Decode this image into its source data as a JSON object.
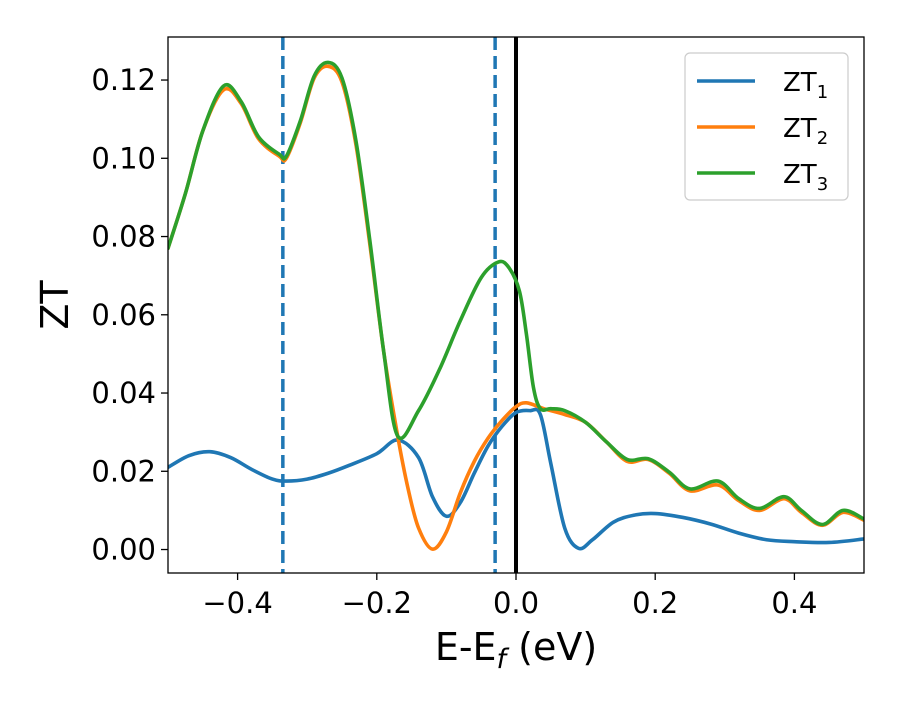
{
  "chart_data": {
    "type": "line",
    "xlabel": "E-E",
    "xlabel_sub": "f",
    "xlabel_unit": " (eV)",
    "ylabel": "ZT",
    "xlim": [
      -0.5,
      0.5
    ],
    "ylim": [
      -0.006,
      0.131
    ],
    "grid": false,
    "legend_position": "top-right",
    "x_ticks": [
      {
        "value": -0.4,
        "label": "−0.4"
      },
      {
        "value": -0.2,
        "label": "−0.2"
      },
      {
        "value": 0.0,
        "label": "0.0"
      },
      {
        "value": 0.2,
        "label": "0.2"
      },
      {
        "value": 0.4,
        "label": "0.4"
      }
    ],
    "y_ticks": [
      {
        "value": 0.0,
        "label": "0.00"
      },
      {
        "value": 0.02,
        "label": "0.02"
      },
      {
        "value": 0.04,
        "label": "0.04"
      },
      {
        "value": 0.06,
        "label": "0.06"
      },
      {
        "value": 0.08,
        "label": "0.08"
      },
      {
        "value": 0.1,
        "label": "0.10"
      },
      {
        "value": 0.12,
        "label": "0.12"
      }
    ],
    "vertical_lines": [
      {
        "x": -0.335,
        "style": "dashed",
        "color": "#1f77b4"
      },
      {
        "x": -0.03,
        "style": "dashed",
        "color": "#1f77b4"
      },
      {
        "x": 0.0,
        "style": "solid",
        "color": "#000000"
      }
    ],
    "series": [
      {
        "name": "ZT",
        "sub": "1",
        "color": "#1f77b4",
        "points": [
          [
            -0.5,
            0.021
          ],
          [
            -0.47,
            0.024
          ],
          [
            -0.44,
            0.025
          ],
          [
            -0.41,
            0.0235
          ],
          [
            -0.38,
            0.0205
          ],
          [
            -0.35,
            0.018
          ],
          [
            -0.33,
            0.0175
          ],
          [
            -0.3,
            0.018
          ],
          [
            -0.27,
            0.0195
          ],
          [
            -0.24,
            0.0215
          ],
          [
            -0.2,
            0.0245
          ],
          [
            -0.17,
            0.028
          ],
          [
            -0.14,
            0.0235
          ],
          [
            -0.12,
            0.0135
          ],
          [
            -0.1,
            0.0085
          ],
          [
            -0.08,
            0.012
          ],
          [
            -0.06,
            0.0195
          ],
          [
            -0.04,
            0.0265
          ],
          [
            -0.02,
            0.0315
          ],
          [
            0.0,
            0.035
          ],
          [
            0.02,
            0.0355
          ],
          [
            0.035,
            0.0345
          ],
          [
            0.05,
            0.022
          ],
          [
            0.07,
            0.0055
          ],
          [
            0.09,
            0.0003
          ],
          [
            0.11,
            0.0025
          ],
          [
            0.14,
            0.007
          ],
          [
            0.17,
            0.0088
          ],
          [
            0.2,
            0.0092
          ],
          [
            0.24,
            0.0082
          ],
          [
            0.28,
            0.0065
          ],
          [
            0.32,
            0.0042
          ],
          [
            0.36,
            0.0025
          ],
          [
            0.4,
            0.002
          ],
          [
            0.45,
            0.0018
          ],
          [
            0.5,
            0.0027
          ]
        ]
      },
      {
        "name": "ZT",
        "sub": "2",
        "color": "#ff7f0e",
        "points": [
          [
            -0.5,
            0.077
          ],
          [
            -0.475,
            0.091
          ],
          [
            -0.45,
            0.107
          ],
          [
            -0.42,
            0.1175
          ],
          [
            -0.395,
            0.114
          ],
          [
            -0.37,
            0.105
          ],
          [
            -0.34,
            0.1005
          ],
          [
            -0.33,
            0.1
          ],
          [
            -0.31,
            0.109
          ],
          [
            -0.29,
            0.1205
          ],
          [
            -0.27,
            0.1235
          ],
          [
            -0.25,
            0.1195
          ],
          [
            -0.23,
            0.1035
          ],
          [
            -0.21,
            0.078
          ],
          [
            -0.19,
            0.0505
          ],
          [
            -0.17,
            0.029
          ],
          [
            -0.155,
            0.0155
          ],
          [
            -0.14,
            0.0055
          ],
          [
            -0.12,
            0.0001
          ],
          [
            -0.1,
            0.0045
          ],
          [
            -0.08,
            0.0145
          ],
          [
            -0.06,
            0.0225
          ],
          [
            -0.04,
            0.0285
          ],
          [
            -0.02,
            0.033
          ],
          [
            0.0,
            0.0365
          ],
          [
            0.015,
            0.0375
          ],
          [
            0.04,
            0.036
          ],
          [
            0.07,
            0.0345
          ],
          [
            0.1,
            0.0325
          ],
          [
            0.13,
            0.0275
          ],
          [
            0.16,
            0.0225
          ],
          [
            0.19,
            0.023
          ],
          [
            0.22,
            0.0195
          ],
          [
            0.25,
            0.015
          ],
          [
            0.29,
            0.0165
          ],
          [
            0.32,
            0.0125
          ],
          [
            0.35,
            0.01
          ],
          [
            0.385,
            0.013
          ],
          [
            0.41,
            0.0095
          ],
          [
            0.44,
            0.0062
          ],
          [
            0.47,
            0.0095
          ],
          [
            0.5,
            0.0075
          ]
        ]
      },
      {
        "name": "ZT",
        "sub": "3",
        "color": "#2ca02c",
        "points": [
          [
            -0.5,
            0.077
          ],
          [
            -0.475,
            0.091
          ],
          [
            -0.45,
            0.107
          ],
          [
            -0.42,
            0.1185
          ],
          [
            -0.395,
            0.1145
          ],
          [
            -0.37,
            0.1055
          ],
          [
            -0.34,
            0.101
          ],
          [
            -0.33,
            0.1005
          ],
          [
            -0.31,
            0.1095
          ],
          [
            -0.29,
            0.121
          ],
          [
            -0.27,
            0.1245
          ],
          [
            -0.25,
            0.1205
          ],
          [
            -0.23,
            0.1045
          ],
          [
            -0.21,
            0.079
          ],
          [
            -0.19,
            0.0505
          ],
          [
            -0.17,
            0.029
          ],
          [
            -0.14,
            0.0355
          ],
          [
            -0.11,
            0.046
          ],
          [
            -0.08,
            0.0585
          ],
          [
            -0.05,
            0.0695
          ],
          [
            -0.025,
            0.0735
          ],
          [
            -0.01,
            0.072
          ],
          [
            0.005,
            0.066
          ],
          [
            0.015,
            0.055
          ],
          [
            0.025,
            0.0415
          ],
          [
            0.035,
            0.036
          ],
          [
            0.05,
            0.036
          ],
          [
            0.07,
            0.0355
          ],
          [
            0.1,
            0.0325
          ],
          [
            0.13,
            0.0275
          ],
          [
            0.16,
            0.023
          ],
          [
            0.19,
            0.0232
          ],
          [
            0.22,
            0.0198
          ],
          [
            0.25,
            0.0155
          ],
          [
            0.29,
            0.0175
          ],
          [
            0.32,
            0.013
          ],
          [
            0.35,
            0.0105
          ],
          [
            0.385,
            0.0135
          ],
          [
            0.41,
            0.01
          ],
          [
            0.44,
            0.0064
          ],
          [
            0.47,
            0.01
          ],
          [
            0.5,
            0.0078
          ]
        ]
      }
    ]
  }
}
